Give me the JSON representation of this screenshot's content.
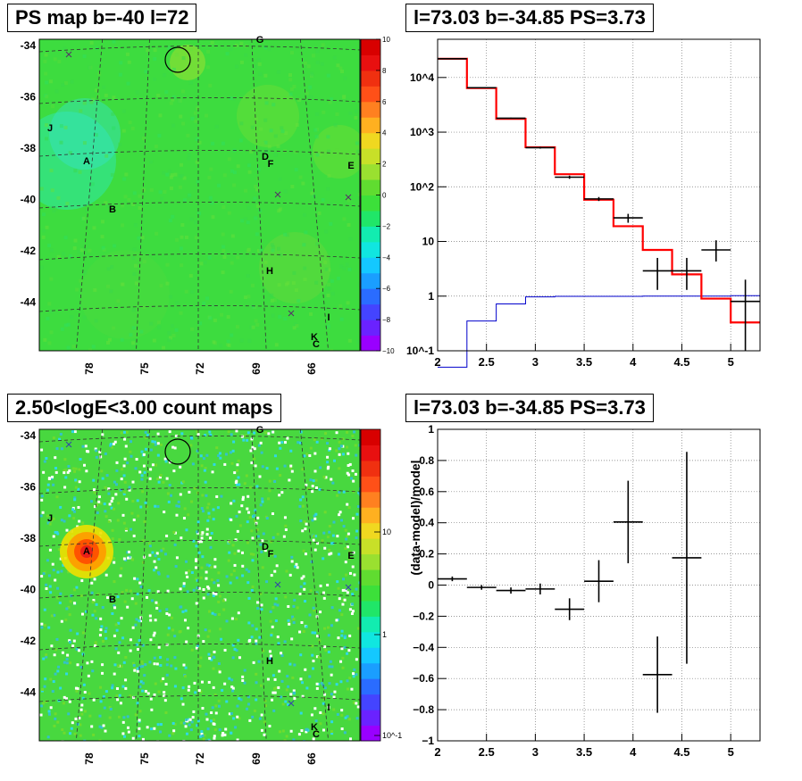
{
  "panels": {
    "tl": {
      "title": "PS map b=-40 l=72"
    },
    "tr": {
      "title": "l=73.03 b=-34.85 PS=3.73"
    },
    "bl": {
      "title": "2.50<logE<3.00 count maps"
    },
    "br": {
      "title": "l=73.03 b=-34.85 PS=3.73"
    }
  },
  "colors": {
    "data": "#000000",
    "model": "#ff0000",
    "background_model": "#0000cc",
    "map_base": "#33dd33"
  },
  "chart_data": [
    {
      "type": "heatmap",
      "title": "PS map b=-40 l=72",
      "y_ticks": [
        "-34",
        "-36",
        "-38",
        "-40",
        "-42",
        "-44"
      ],
      "x_ticks": [
        "78",
        "75",
        "72",
        "69",
        "66"
      ],
      "colorbar_ticks": [
        "10",
        "8",
        "6",
        "4",
        "2",
        "0",
        "−2",
        "−4",
        "−6",
        "−8",
        "−10"
      ],
      "zlim": [
        -10,
        10
      ],
      "labels": [
        "G",
        "J",
        "A",
        "D",
        "F",
        "E",
        "B",
        "H",
        "I",
        "K",
        "C"
      ],
      "markers": "x",
      "circle": "source position",
      "grid": true
    },
    {
      "type": "line",
      "title": "l=73.03 b=-34.85 PS=3.73",
      "log_y": true,
      "xlim": [
        2,
        5.3
      ],
      "ylim": [
        0.1,
        50000
      ],
      "x_ticks": [
        "2",
        "2.5",
        "3",
        "3.5",
        "4",
        "4.5",
        "5"
      ],
      "y_ticks": [
        "10^4",
        "10^3",
        "10^2",
        "10",
        "1",
        "10^-1"
      ],
      "bin_edges": [
        2.0,
        2.3,
        2.6,
        2.9,
        3.2,
        3.5,
        3.8,
        4.1,
        4.4,
        4.7,
        5.0,
        5.3
      ],
      "series": [
        {
          "kind": "data",
          "x": [
            2.15,
            2.45,
            2.75,
            3.05,
            3.35,
            3.65,
            3.95,
            4.25,
            4.55,
            4.85,
            5.15
          ],
          "y": [
            22000,
            6500,
            1800,
            520,
            150,
            60,
            27,
            2.9,
            2.9,
            7,
            0.8
          ],
          "ylo": [
            21500,
            6400,
            1760,
            500,
            140,
            55,
            22,
            1.3,
            1.3,
            4.3,
            0.1
          ],
          "yhi": [
            22500,
            6600,
            1840,
            540,
            160,
            65,
            32,
            5.0,
            5.0,
            10.5,
            2.0
          ]
        },
        {
          "kind": "model",
          "y": [
            22000,
            6400,
            1750,
            530,
            170,
            58,
            19,
            7,
            2.5,
            0.9,
            0.33
          ]
        },
        {
          "kind": "background_model",
          "y": [
            0.05,
            0.35,
            0.72,
            0.97,
            0.99,
            0.99,
            0.99,
            1.0,
            1.0,
            1.0,
            1.02
          ]
        }
      ],
      "grid": true
    },
    {
      "type": "heatmap",
      "title": "2.50<logE<3.00 count maps",
      "y_ticks": [
        "-34",
        "-36",
        "-38",
        "-40",
        "-42",
        "-44"
      ],
      "x_ticks": [
        "78",
        "75",
        "72",
        "69",
        "66"
      ],
      "colorbar_ticks": [
        "10",
        "1",
        "10^-1"
      ],
      "log_z": true,
      "labels": [
        "G",
        "J",
        "A",
        "D",
        "F",
        "E",
        "B",
        "H",
        "I",
        "K",
        "C"
      ],
      "markers": "x",
      "circle": "source position",
      "grid": true
    },
    {
      "type": "scatter",
      "title": "l=73.03 b=-34.85 PS=3.73",
      "ylabel": "(data-model)/model",
      "xlim": [
        2,
        5.3
      ],
      "ylim": [
        -1,
        1
      ],
      "x_ticks": [
        "2",
        "2.5",
        "3",
        "3.5",
        "4",
        "4.5",
        "5"
      ],
      "y_ticks": [
        "1",
        "0.8",
        "0.6",
        "0.4",
        "0.2",
        "0",
        "−0.2",
        "−0.4",
        "−0.6",
        "−0.8",
        "−1"
      ],
      "series": [
        {
          "x": [
            2.15,
            2.45,
            2.75,
            3.05,
            3.35,
            3.65,
            3.95,
            4.25,
            4.55
          ],
          "y": [
            0.04,
            -0.015,
            -0.035,
            -0.025,
            -0.155,
            0.025,
            0.405,
            -0.575,
            0.175
          ],
          "err": [
            0.015,
            0.015,
            0.02,
            0.035,
            0.07,
            0.135,
            0.265,
            0.245,
            0.68
          ]
        }
      ],
      "grid": true
    }
  ]
}
